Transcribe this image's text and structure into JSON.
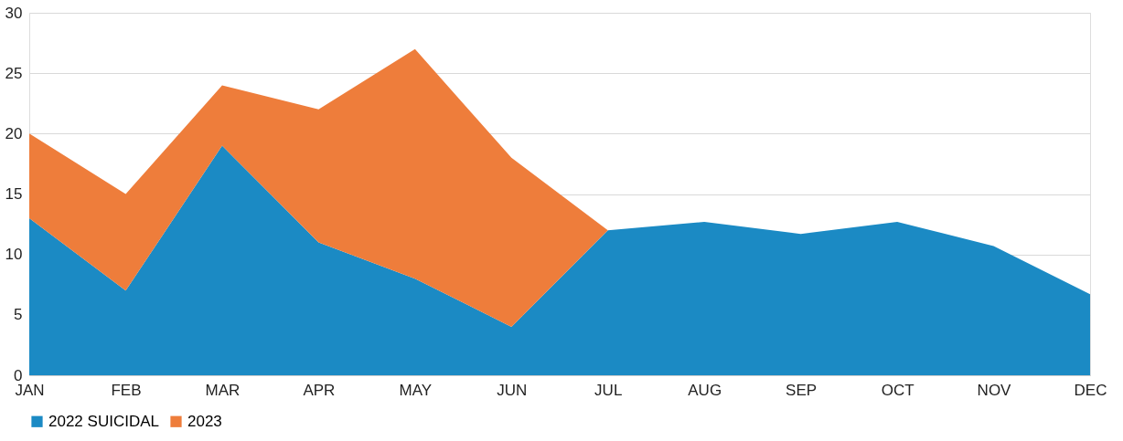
{
  "chart_data": {
    "type": "area",
    "stacked": true,
    "categories": [
      "JAN",
      "FEB",
      "MAR",
      "APR",
      "MAY",
      "JUN",
      "JUL",
      "AUG",
      "SEP",
      "OCT",
      "NOV",
      "DEC"
    ],
    "series": [
      {
        "name": "2022 SUICIDAL",
        "color": "#1b8ac4",
        "values": [
          13,
          7,
          19,
          11,
          8,
          4,
          12,
          12.7,
          11.7,
          12.7,
          10.7,
          6.7
        ]
      },
      {
        "name": "2023",
        "color": "#ee7d3b",
        "values": [
          7,
          8,
          5,
          11,
          19,
          14,
          0,
          null,
          null,
          null,
          null,
          null
        ]
      }
    ],
    "ylim": [
      0,
      30
    ],
    "yticks": [
      0,
      5,
      10,
      15,
      20,
      25,
      30
    ],
    "grid": "y",
    "legend": "bottom"
  }
}
